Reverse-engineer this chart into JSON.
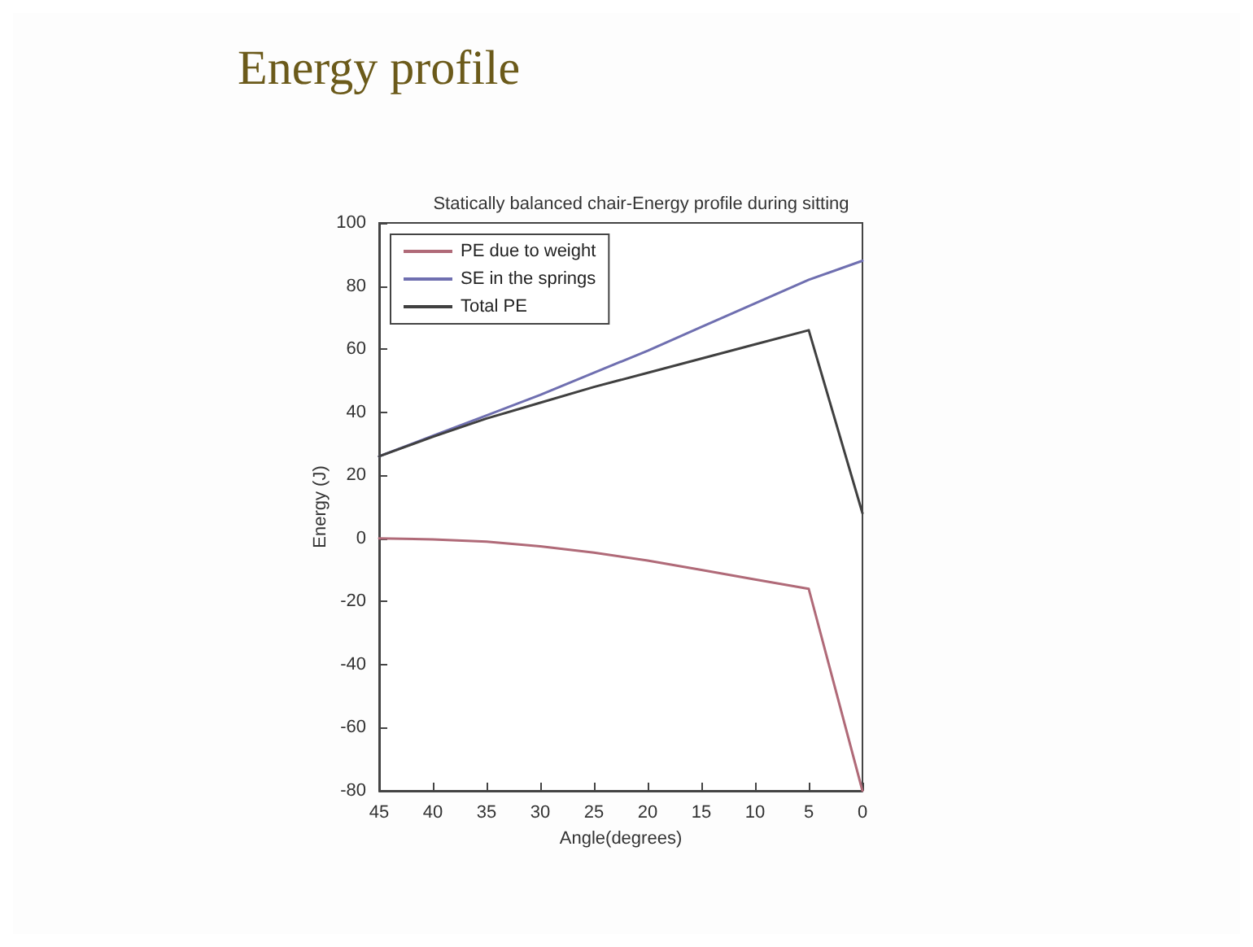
{
  "chart_data": {
    "type": "line",
    "title": "Energy profile",
    "subtitle": "Statically balanced chair-Energy profile during sitting",
    "xlabel": "Angle(degrees)",
    "ylabel": "Energy (J)",
    "x": [
      45,
      40,
      35,
      30,
      25,
      20,
      15,
      10,
      5,
      0
    ],
    "series": [
      {
        "name": "PE due to weight",
        "color": "#b06a78",
        "values": [
          0,
          -0.3,
          -1,
          -2.5,
          -4.5,
          -7,
          -10,
          -13,
          -16,
          -80
        ]
      },
      {
        "name": "SE in the springs",
        "color": "#6f6fb0",
        "values": [
          26,
          32.5,
          39,
          45.5,
          52.5,
          59.5,
          67,
          74.5,
          82,
          88
        ]
      },
      {
        "name": "Total PE",
        "color": "#404040",
        "values": [
          26,
          32.2,
          38,
          43,
          48,
          52.5,
          57,
          61.5,
          66,
          8
        ]
      }
    ],
    "xlim": [
      45,
      0
    ],
    "xticks": [
      45,
      40,
      35,
      30,
      25,
      20,
      15,
      10,
      5,
      0
    ],
    "ylim": [
      -80,
      100
    ],
    "yticks": [
      -80,
      -60,
      -40,
      -20,
      0,
      20,
      40,
      60,
      80,
      100
    ],
    "grid": false,
    "legend": "top left",
    "marker": "none",
    "line_style": "solid"
  }
}
